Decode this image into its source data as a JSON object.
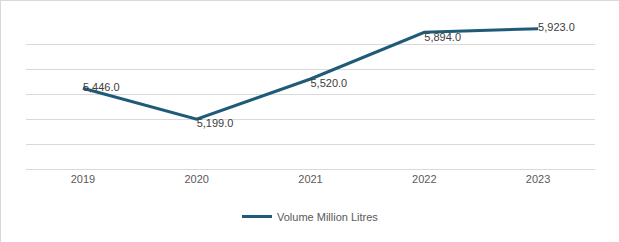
{
  "chart_data": {
    "type": "line",
    "categories": [
      "2019",
      "2020",
      "2021",
      "2022",
      "2023"
    ],
    "series": [
      {
        "name": "Volume Million Litres",
        "color": "#1f5b78",
        "values": [
          5446,
          5199,
          5520,
          5894,
          5923
        ],
        "value_labels": [
          "5,446.0",
          "5,199.0",
          "5,520.0",
          "5,894.0",
          "5,923.0"
        ]
      }
    ],
    "ylim": [
      4800,
      6000
    ],
    "yticks": [
      4800,
      5000,
      5200,
      5400,
      5600,
      5800,
      6000
    ],
    "grid": true,
    "legend": "bottom",
    "data_labels": true,
    "tick_labels": "x"
  }
}
